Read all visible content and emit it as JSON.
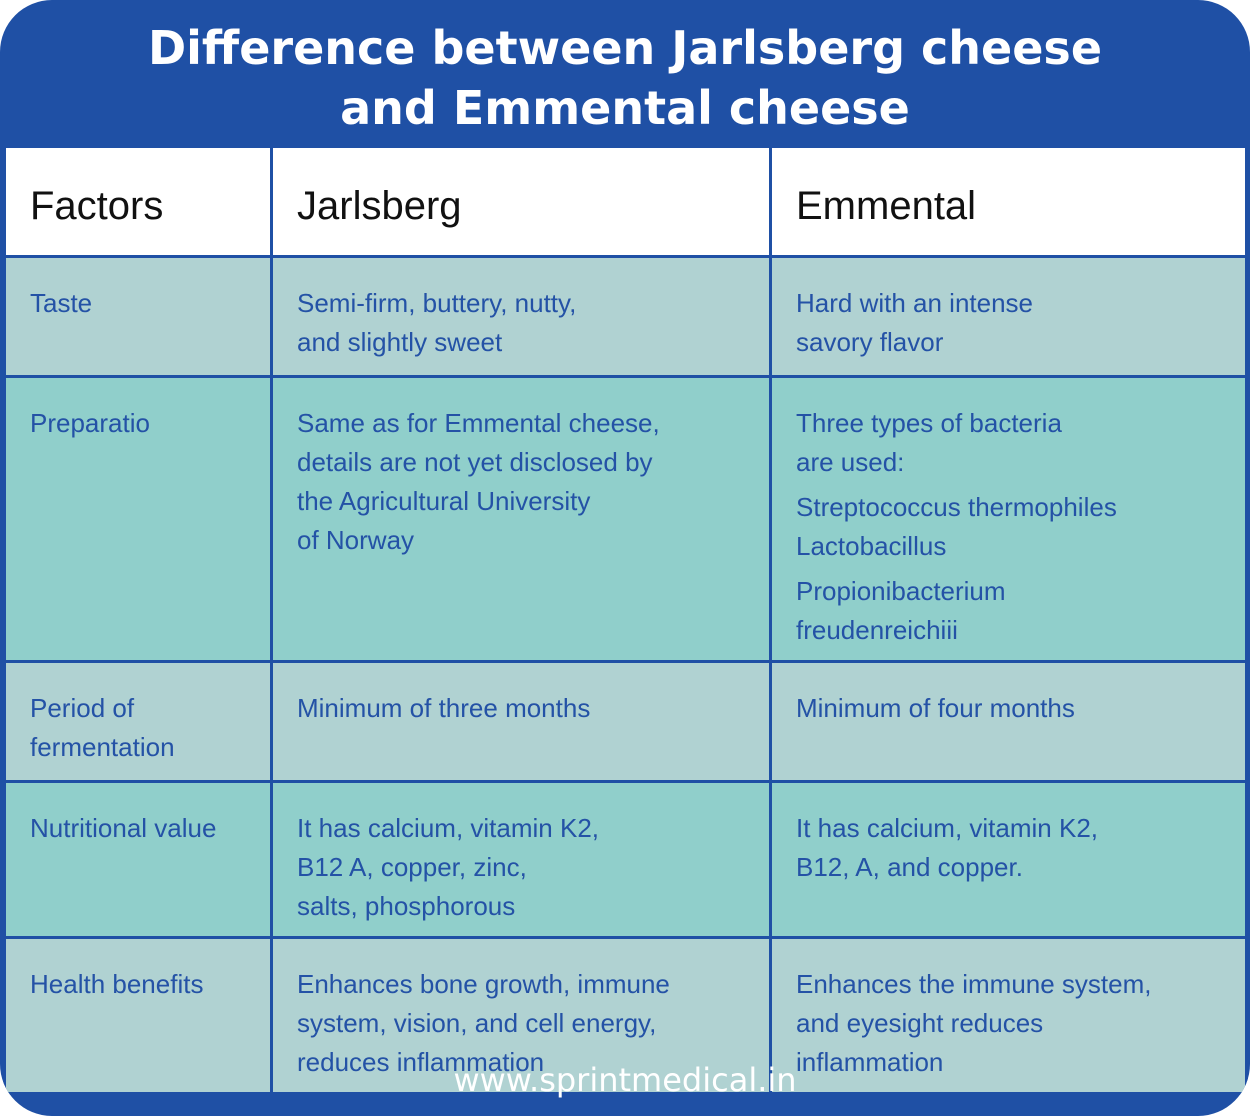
{
  "title": [
    "Difference between Jarlsberg cheese",
    "and Emmental cheese"
  ],
  "headers": [
    "Factors",
    "Jarlsberg",
    "Emmental"
  ],
  "rows": [
    {
      "factor": [
        "Taste"
      ],
      "jarlsberg": [
        [
          "Semi-firm, buttery, nutty,",
          "and slightly sweet"
        ]
      ],
      "emmental": [
        [
          "Hard with an intense",
          "savory flavor"
        ]
      ]
    },
    {
      "factor": [
        "Preparatio"
      ],
      "jarlsberg": [
        [
          "Same as for Emmental cheese,",
          "details are not yet disclosed by",
          "the Agricultural  University",
          "of Norway"
        ]
      ],
      "emmental": [
        [
          "Three types of bacteria",
          "are used:"
        ],
        [
          "Streptococcus thermophiles",
          "Lactobacillus"
        ],
        [
          "Propionibacterium",
          "freudenreichiii"
        ]
      ]
    },
    {
      "factor": [
        "Period of",
        "fermentation"
      ],
      "jarlsberg": [
        [
          "Minimum of three months"
        ]
      ],
      "emmental": [
        [
          "Minimum of four months"
        ]
      ]
    },
    {
      "factor": [
        "Nutritional value"
      ],
      "jarlsberg": [
        [
          "It has calcium, vitamin K2,",
          "B12 A, copper, zinc,",
          "salts, phosphorous"
        ]
      ],
      "emmental": [
        [
          "It has calcium, vitamin K2,",
          "B12, A, and copper."
        ]
      ]
    },
    {
      "factor": [
        "Health benefits"
      ],
      "jarlsberg": [
        [
          "Enhances bone growth, immune",
          "system, vision, and cell energy,",
          "reduces inflammation"
        ]
      ],
      "emmental": [
        [
          "Enhances the immune system,",
          "and eyesight reduces",
          "inflammation"
        ]
      ]
    }
  ],
  "footer": "www.sprintmedical.in",
  "colors": {
    "brand": "#1f50a5",
    "row_light": "#b0d2d2",
    "row_teal": "#90cfcb"
  }
}
